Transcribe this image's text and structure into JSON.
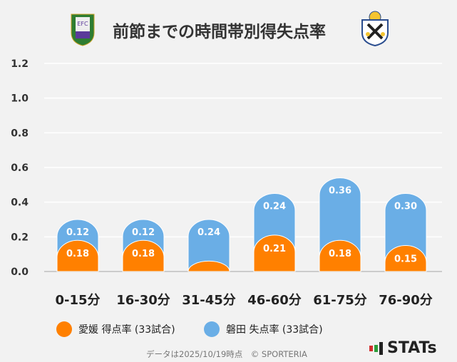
{
  "title": "前節までの時間帯別得失点率",
  "footer": {
    "note": "データは2025/10/19時点　© SPORTERIA",
    "brand": "STATs"
  },
  "logos": {
    "left": "EFC",
    "right": "JUBILO IWATA"
  },
  "chart_data": {
    "type": "bar",
    "stacked": true,
    "categories": [
      "0-15分",
      "16-30分",
      "31-45分",
      "46-60分",
      "61-75分",
      "76-90分"
    ],
    "series": [
      {
        "name": "愛媛 得点率 (33試合)",
        "color": "#ff8000",
        "values": [
          0.18,
          0.18,
          0.06,
          0.21,
          0.18,
          0.15
        ],
        "labels": [
          "0.18",
          "0.18",
          "",
          "0.21",
          "0.18",
          "0.15"
        ]
      },
      {
        "name": "磐田 失点率 (33試合)",
        "color": "#6aaee6",
        "values": [
          0.12,
          0.12,
          0.24,
          0.24,
          0.36,
          0.3
        ],
        "labels": [
          "0.12",
          "0.12",
          "0.24",
          "0.24",
          "0.36",
          "0.30"
        ]
      }
    ],
    "yticks": [
      "0.0",
      "0.2",
      "0.4",
      "0.6",
      "0.8",
      "1.0",
      "1.2"
    ],
    "ylim": [
      0,
      1.2
    ],
    "grid": true,
    "legend": "bottom"
  }
}
